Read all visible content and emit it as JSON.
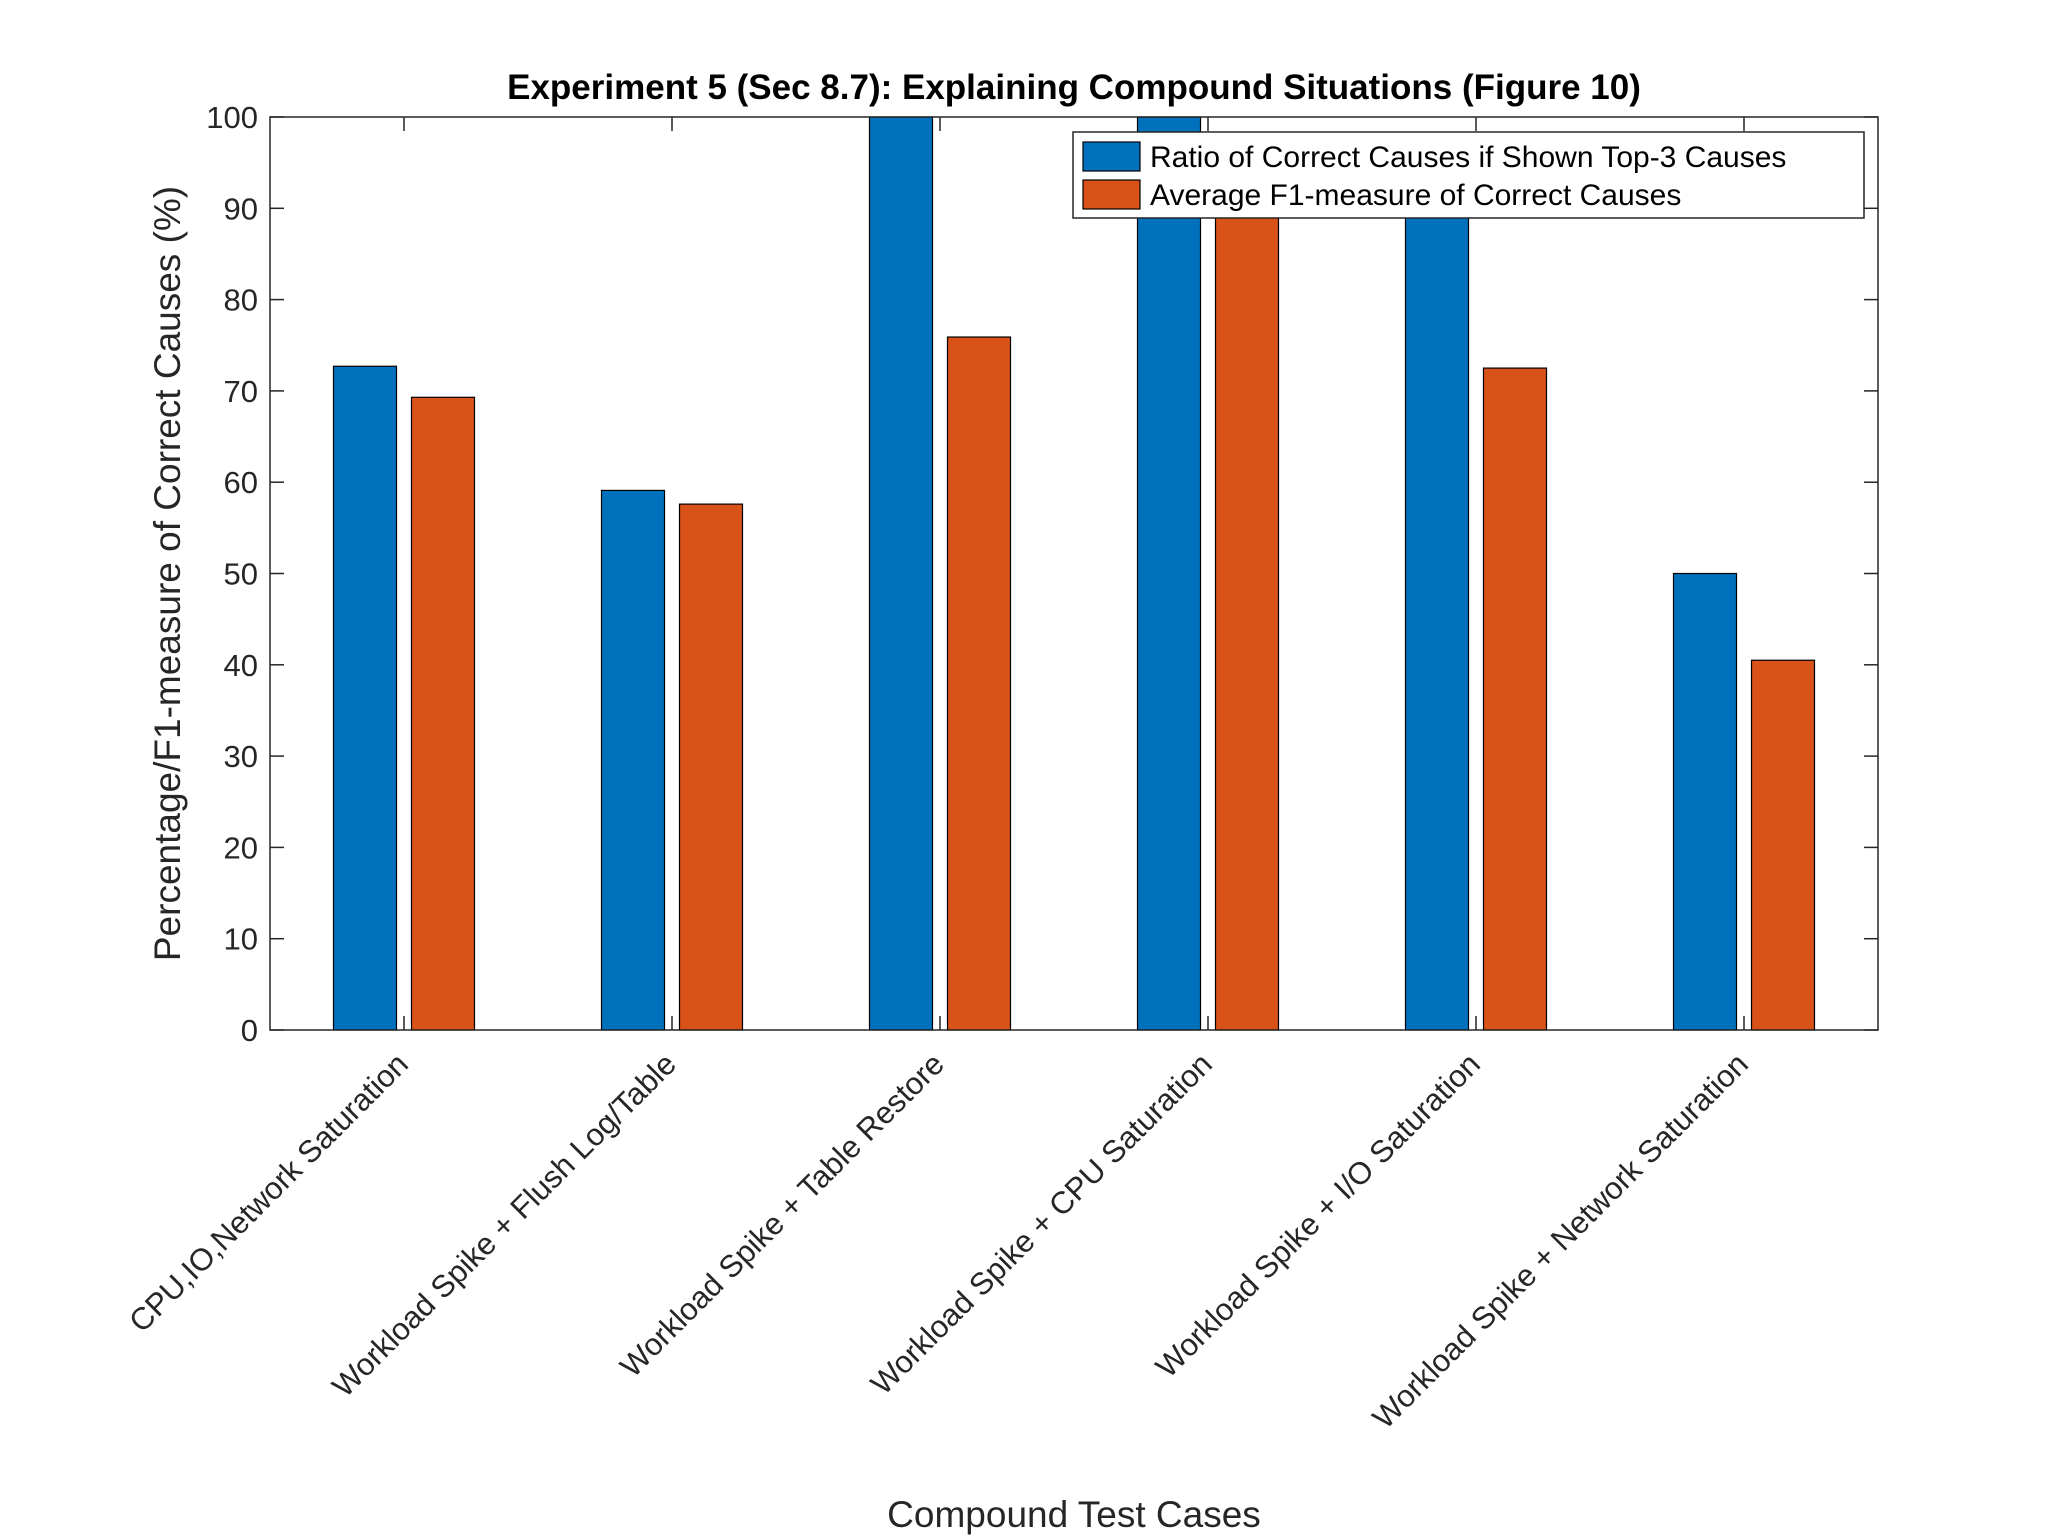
{
  "colors": {
    "series1": "#0072BD",
    "series2": "#D95319",
    "axis": "#262626",
    "background": "#ffffff"
  },
  "chart_data": {
    "type": "bar",
    "title": "Experiment 5 (Sec 8.7): Explaining Compound Situations (Figure 10)",
    "xlabel": "Compound Test Cases",
    "ylabel": "Percentage/F1-measure of Correct Causes (%)",
    "ylim": [
      0,
      100
    ],
    "yticks": [
      0,
      10,
      20,
      30,
      40,
      50,
      60,
      70,
      80,
      90,
      100
    ],
    "grid": false,
    "legend_position": "top-right",
    "categories": [
      "CPU,IO,Network Saturation",
      "Workload Spike + Flush Log/Table",
      "Workload Spike + Table Restore",
      "Workload Spike + CPU Saturation",
      "Workload Spike + I/O Saturation",
      "Workload Spike + Network Saturation"
    ],
    "series": [
      {
        "name": "Ratio of Correct Causes if Shown Top-3 Causes",
        "color": "#0072BD",
        "values": [
          72.7,
          59.1,
          100,
          100,
          90,
          50
        ]
      },
      {
        "name": "Average F1-measure of Correct Causes",
        "color": "#D95319",
        "values": [
          69.3,
          57.6,
          75.9,
          90,
          72.5,
          40.5
        ]
      }
    ]
  }
}
